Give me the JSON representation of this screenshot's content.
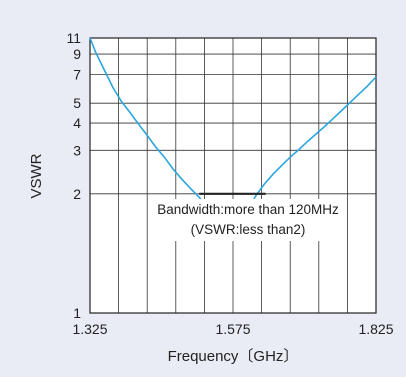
{
  "chart_data": {
    "type": "line",
    "xlabel": "Frequency〔GHz〕",
    "ylabel": "VSWR",
    "xlim": [
      1.325,
      1.825
    ],
    "ylim": [
      1,
      11
    ],
    "y_scale": "log (VSWR-1)",
    "x_ticks": [
      {
        "value": 1.325,
        "label": "1.325"
      },
      {
        "value": 1.575,
        "label": "1.575"
      },
      {
        "value": 1.825,
        "label": "1.825"
      }
    ],
    "y_ticks": [
      {
        "value": 1,
        "label": "1"
      },
      {
        "value": 2,
        "label": "2"
      },
      {
        "value": 3,
        "label": "3"
      },
      {
        "value": 4,
        "label": "4"
      },
      {
        "value": 5,
        "label": "5"
      },
      {
        "value": 7,
        "label": "7"
      },
      {
        "value": 9,
        "label": "9"
      },
      {
        "value": 11,
        "label": "11"
      }
    ],
    "x_gridlines": [
      1.375,
      1.425,
      1.475,
      1.525,
      1.575,
      1.625,
      1.675,
      1.725,
      1.775
    ],
    "y_gridlines": [
      2,
      3,
      4,
      5,
      7,
      9
    ],
    "grid": true,
    "series": [
      {
        "color": "#2aa6dd",
        "points": [
          [
            1.325,
            11.0
          ],
          [
            1.335,
            9.2
          ],
          [
            1.35,
            7.4
          ],
          [
            1.365,
            6.0
          ],
          [
            1.38,
            5.1
          ],
          [
            1.395,
            4.5
          ],
          [
            1.41,
            3.95
          ],
          [
            1.425,
            3.5
          ],
          [
            1.44,
            3.1
          ],
          [
            1.455,
            2.8
          ],
          [
            1.47,
            2.5
          ],
          [
            1.485,
            2.28
          ],
          [
            1.5,
            2.1
          ],
          [
            1.515,
            1.95
          ],
          [
            1.53,
            1.8
          ],
          [
            1.545,
            1.67
          ],
          [
            1.56,
            1.56
          ],
          [
            1.568,
            1.52
          ],
          [
            1.575,
            1.52
          ],
          [
            1.585,
            1.58
          ],
          [
            1.6,
            1.74
          ],
          [
            1.615,
            1.97
          ],
          [
            1.63,
            2.18
          ],
          [
            1.645,
            2.38
          ],
          [
            1.66,
            2.58
          ],
          [
            1.675,
            2.8
          ],
          [
            1.69,
            3.02
          ],
          [
            1.705,
            3.28
          ],
          [
            1.72,
            3.55
          ],
          [
            1.735,
            3.85
          ],
          [
            1.75,
            4.2
          ],
          [
            1.765,
            4.6
          ],
          [
            1.78,
            5.05
          ],
          [
            1.795,
            5.55
          ],
          [
            1.81,
            6.1
          ],
          [
            1.825,
            6.8
          ]
        ]
      }
    ],
    "bandwidth_marker": {
      "x": [
        1.516,
        1.632
      ],
      "y": 2,
      "color": "#222222"
    },
    "annotation_lines": [
      "Bandwidth:more than 120MHz",
      "(VSWR:less than2)"
    ]
  }
}
